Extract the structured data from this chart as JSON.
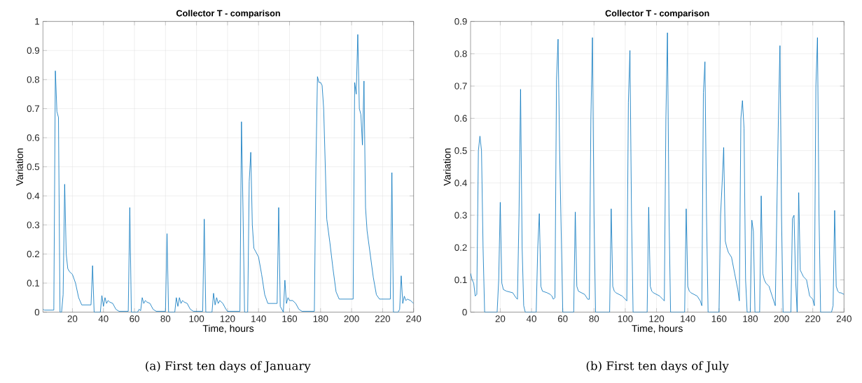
{
  "chart_data": [
    {
      "type": "line",
      "title": "Collector T - comparison",
      "xlabel": "Time, hours",
      "ylabel": "Variation",
      "annotations": [
        "(a) First ten days of January"
      ],
      "grid": true,
      "xlim": [
        1,
        240
      ],
      "ylim": [
        0,
        1
      ],
      "xticks": [
        20,
        40,
        60,
        80,
        100,
        120,
        140,
        160,
        180,
        200,
        220,
        240
      ],
      "yticks": [
        0,
        0.1,
        0.2,
        0.3,
        0.4,
        0.5,
        0.6,
        0.7,
        0.8,
        0.9,
        1
      ],
      "series": [
        {
          "color": "#0072bd",
          "x": [
            1,
            2,
            8,
            9,
            10,
            11,
            12,
            13,
            14,
            15,
            16,
            17,
            18,
            20,
            22,
            24,
            26,
            32,
            33,
            34,
            38,
            39,
            40,
            41,
            42,
            43,
            44,
            46,
            48,
            50,
            56,
            57,
            58,
            62,
            63,
            64,
            65,
            66,
            67,
            68,
            70,
            72,
            74,
            80,
            81,
            82,
            86,
            87,
            88,
            89,
            90,
            91,
            92,
            94,
            96,
            98,
            104,
            105,
            106,
            110,
            111,
            112,
            113,
            114,
            115,
            117,
            119,
            120,
            128,
            129,
            130,
            131,
            133,
            134,
            135,
            136,
            137,
            138,
            140,
            142,
            144,
            146,
            152,
            153,
            154,
            156,
            157,
            158,
            159,
            160,
            162,
            164,
            166,
            168,
            176,
            177,
            178,
            179,
            180,
            181,
            182,
            184,
            186,
            188,
            190,
            192,
            201,
            202,
            203,
            204,
            205,
            206,
            207,
            208,
            209,
            210,
            212,
            214,
            216,
            218,
            225,
            226,
            227,
            230,
            231,
            232,
            233,
            234,
            235,
            236,
            238,
            240
          ],
          "values": [
            0.01,
            0.007,
            0.007,
            0.83,
            0.69,
            0.67,
            0,
            0,
            0.06,
            0.44,
            0.2,
            0.15,
            0.14,
            0.13,
            0.1,
            0.05,
            0.025,
            0.025,
            0.16,
            0,
            0,
            0.057,
            0.02,
            0.05,
            0.03,
            0.04,
            0.035,
            0.03,
            0.01,
            0.003,
            0.003,
            0.36,
            0,
            0,
            0.01,
            0.005,
            0.05,
            0.03,
            0.04,
            0.035,
            0.03,
            0.01,
            0.003,
            0.003,
            0.27,
            0,
            0,
            0.05,
            0.02,
            0.05,
            0.03,
            0.04,
            0.035,
            0.03,
            0.01,
            0.003,
            0.003,
            0.32,
            0,
            0,
            0.065,
            0.025,
            0.05,
            0.03,
            0.04,
            0.03,
            0.01,
            0.003,
            0.003,
            0.655,
            0.35,
            0,
            0,
            0.45,
            0.55,
            0.3,
            0.22,
            0.21,
            0.19,
            0.13,
            0.06,
            0.03,
            0.03,
            0.36,
            0.02,
            0,
            0.11,
            0.03,
            0.05,
            0.04,
            0.04,
            0.03,
            0.01,
            0.003,
            0.003,
            0.5,
            0.81,
            0.79,
            0.79,
            0.78,
            0.7,
            0.32,
            0.24,
            0.15,
            0.07,
            0.045,
            0.045,
            0.79,
            0.75,
            0.955,
            0.7,
            0.68,
            0.575,
            0.795,
            0.36,
            0.28,
            0.2,
            0.12,
            0.06,
            0.045,
            0.045,
            0.48,
            0,
            0,
            0.01,
            0.125,
            0.03,
            0.055,
            0.04,
            0.045,
            0.04,
            0.03
          ]
        }
      ]
    },
    {
      "type": "line",
      "title": "Collector T - comparison",
      "xlabel": "Time, hours",
      "ylabel": "Variation",
      "annotations": [
        "(b) First ten days of July"
      ],
      "grid": true,
      "xlim": [
        1,
        240
      ],
      "ylim": [
        0,
        0.9
      ],
      "xticks": [
        20,
        40,
        60,
        80,
        100,
        120,
        140,
        160,
        180,
        200,
        220,
        240
      ],
      "yticks": [
        0,
        0.1,
        0.2,
        0.3,
        0.4,
        0.5,
        0.6,
        0.7,
        0.8,
        0.9
      ],
      "series": [
        {
          "color": "#0072bd",
          "x": [
            1,
            2,
            3,
            4,
            5,
            6,
            7,
            8,
            9,
            10,
            18,
            19,
            20,
            21,
            22,
            24,
            28,
            30,
            31,
            32,
            33,
            34,
            35,
            36,
            43,
            44,
            45,
            46,
            47,
            50,
            52,
            53,
            54,
            55,
            56,
            57,
            58,
            60,
            67,
            68,
            69,
            70,
            74,
            76,
            77,
            78,
            79,
            80,
            81,
            90,
            91,
            92,
            93,
            94,
            98,
            100,
            101,
            102,
            103,
            104,
            105,
            114,
            115,
            116,
            117,
            118,
            122,
            124,
            125,
            126,
            127,
            128,
            129,
            138,
            139,
            140,
            141,
            142,
            146,
            148,
            149,
            150,
            151,
            152,
            153,
            160,
            161,
            162,
            163,
            164,
            165,
            166,
            168,
            170,
            172,
            173,
            174,
            175,
            176,
            177,
            178,
            180,
            181,
            182,
            183,
            186,
            187,
            188,
            189,
            190,
            192,
            194,
            196,
            198,
            199,
            200,
            201,
            206,
            207,
            208,
            209,
            210,
            211,
            212,
            213,
            214,
            216,
            218,
            220,
            221,
            222,
            223,
            224,
            225,
            232,
            233,
            234,
            235,
            236,
            237,
            238,
            240
          ],
          "values": [
            0.12,
            0.1,
            0.09,
            0.05,
            0.055,
            0.5,
            0.545,
            0.5,
            0.2,
            0,
            0,
            0.1,
            0.34,
            0.09,
            0.07,
            0.065,
            0.06,
            0.045,
            0.04,
            0.3,
            0.69,
            0.2,
            0.02,
            0,
            0,
            0.2,
            0.305,
            0.08,
            0.065,
            0.06,
            0.055,
            0.05,
            0.04,
            0.045,
            0.72,
            0.845,
            0.5,
            0,
            0,
            0.31,
            0.08,
            0.065,
            0.055,
            0.04,
            0.04,
            0.6,
            0.85,
            0.3,
            0,
            0,
            0.32,
            0.08,
            0.065,
            0.06,
            0.05,
            0.04,
            0.035,
            0.65,
            0.81,
            0.3,
            0,
            0,
            0.325,
            0.08,
            0.065,
            0.06,
            0.05,
            0.04,
            0.035,
            0.6,
            0.865,
            0.3,
            0,
            0,
            0.32,
            0.08,
            0.065,
            0.06,
            0.05,
            0.035,
            0.02,
            0.68,
            0.775,
            0.3,
            0,
            0,
            0.3,
            0.4,
            0.51,
            0.22,
            0.2,
            0.185,
            0.17,
            0.12,
            0.07,
            0.035,
            0.6,
            0.655,
            0.57,
            0.1,
            0,
            0,
            0.285,
            0.25,
            0,
            0,
            0.36,
            0.12,
            0.1,
            0.09,
            0.08,
            0.05,
            0.02,
            0.6,
            0.825,
            0.3,
            0,
            0,
            0.29,
            0.3,
            0.1,
            0,
            0.37,
            0.13,
            0.12,
            0.11,
            0.1,
            0.05,
            0.04,
            0.02,
            0.7,
            0.85,
            0.3,
            0,
            0,
            0.02,
            0.315,
            0.08,
            0.065,
            0.06,
            0.06,
            0.055
          ]
        }
      ]
    }
  ]
}
